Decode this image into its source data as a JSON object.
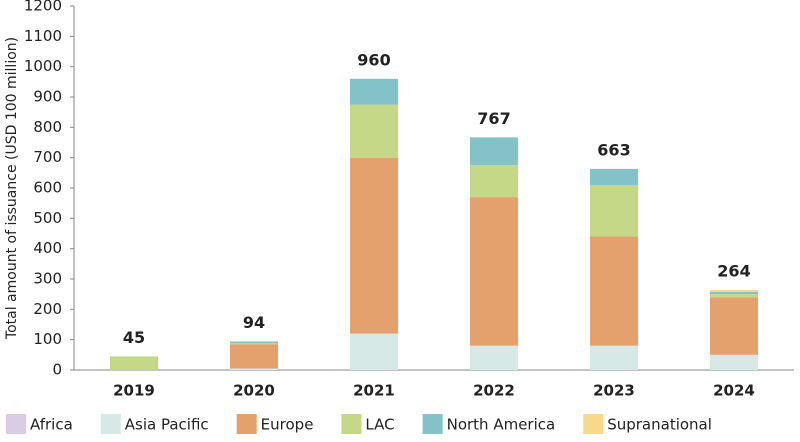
{
  "chart_data": {
    "type": "stacked-bar",
    "y_label": "Total amount of issuance (USD 100 million)",
    "categories": [
      "2019",
      "2020",
      "2021",
      "2022",
      "2023",
      "2024"
    ],
    "series": [
      {
        "name": "Africa",
        "color": "#d9cde6",
        "values": [
          0,
          0,
          0,
          0,
          0,
          0
        ]
      },
      {
        "name": "Asia Pacific",
        "color": "#d6e9e6",
        "values": [
          0,
          5,
          120,
          80,
          80,
          50
        ]
      },
      {
        "name": "Europe",
        "color": "#e4a16d",
        "values": [
          0,
          80,
          580,
          490,
          360,
          190
        ]
      },
      {
        "name": "LAC",
        "color": "#c5d888",
        "values": [
          45,
          3,
          175,
          105,
          170,
          10
        ]
      },
      {
        "name": "North America",
        "color": "#83c3c8",
        "values": [
          0,
          6,
          85,
          92,
          53,
          8
        ]
      },
      {
        "name": "Supranational",
        "color": "#f6d98a",
        "values": [
          0,
          0,
          0,
          0,
          0,
          6
        ]
      }
    ],
    "totals": [
      45,
      94,
      960,
      767,
      663,
      264
    ],
    "ylim": [
      0,
      1200
    ],
    "yticks": [
      0,
      100,
      200,
      300,
      400,
      500,
      600,
      700,
      800,
      900,
      1000,
      1100,
      1200
    ],
    "grid": false
  }
}
